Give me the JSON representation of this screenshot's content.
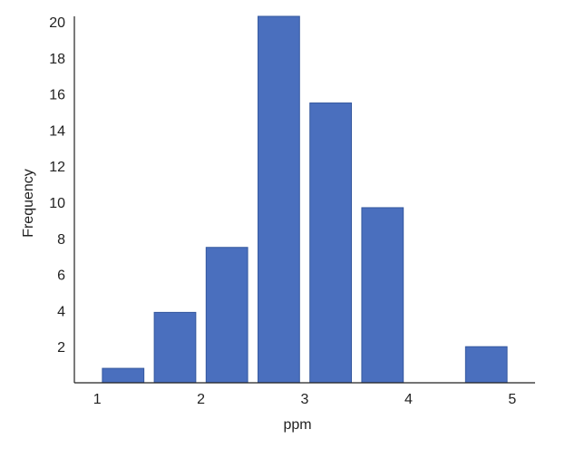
{
  "chart_data": {
    "type": "bar",
    "title": "",
    "xlabel": "ppm",
    "ylabel": "Frequency",
    "x_ticks": [
      1,
      2,
      3,
      4,
      5
    ],
    "y_ticks": [
      2,
      4,
      6,
      8,
      10,
      12,
      14,
      16,
      18,
      20
    ],
    "xlim": [
      0.78,
      5.22
    ],
    "ylim": [
      0,
      20.3
    ],
    "bin_width": 0.4,
    "bar_color": "#4a6fbe",
    "grid": false,
    "bins": [
      {
        "x_center": 1.25,
        "value": 0.8
      },
      {
        "x_center": 1.75,
        "value": 3.9
      },
      {
        "x_center": 2.25,
        "value": 7.5
      },
      {
        "x_center": 2.75,
        "value": 20.3
      },
      {
        "x_center": 3.25,
        "value": 15.5
      },
      {
        "x_center": 3.75,
        "value": 9.7
      },
      {
        "x_center": 4.25,
        "value": 0
      },
      {
        "x_center": 4.75,
        "value": 2.0
      }
    ]
  }
}
